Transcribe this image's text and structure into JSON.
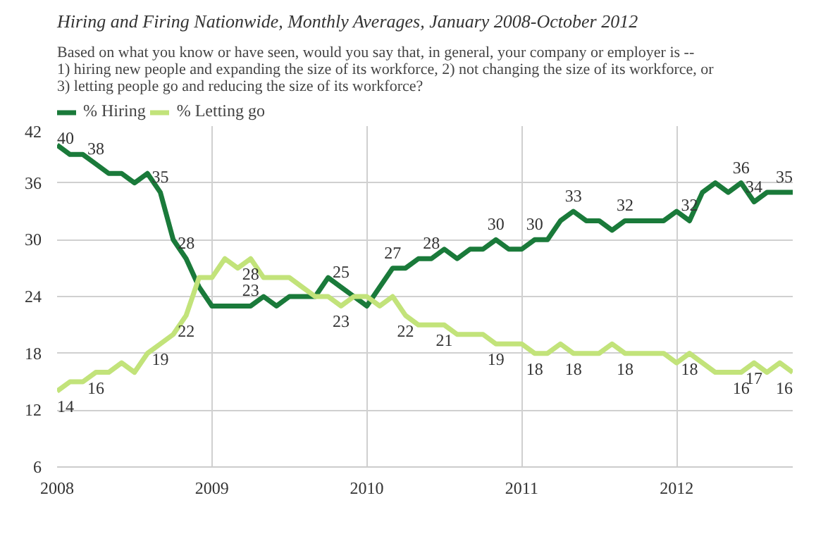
{
  "chart_data": {
    "type": "line",
    "title": "Hiring and Firing Nationwide, Monthly Averages, January 2008-October 2012",
    "subtitle": "Based on what you know or have seen, would you say that, in general, your company or employer is --\n1) hiring new people and expanding the size of its workforce, 2) not changing the size of its workforce, or\n3) letting people go and reducing the size of its workforce?",
    "x": [
      "2008-01",
      "2008-02",
      "2008-03",
      "2008-04",
      "2008-05",
      "2008-06",
      "2008-07",
      "2008-08",
      "2008-09",
      "2008-10",
      "2008-11",
      "2008-12",
      "2009-01",
      "2009-02",
      "2009-03",
      "2009-04",
      "2009-05",
      "2009-06",
      "2009-07",
      "2009-08",
      "2009-09",
      "2009-10",
      "2009-11",
      "2009-12",
      "2010-01",
      "2010-02",
      "2010-03",
      "2010-04",
      "2010-05",
      "2010-06",
      "2010-07",
      "2010-08",
      "2010-09",
      "2010-10",
      "2010-11",
      "2010-12",
      "2011-01",
      "2011-02",
      "2011-03",
      "2011-04",
      "2011-05",
      "2011-06",
      "2011-07",
      "2011-08",
      "2011-09",
      "2011-10",
      "2011-11",
      "2011-12",
      "2012-01",
      "2012-02",
      "2012-03",
      "2012-04",
      "2012-05",
      "2012-06",
      "2012-07",
      "2012-08",
      "2012-09",
      "2012-10"
    ],
    "series": [
      {
        "name": "% Hiring",
        "color": "#1a7a3a",
        "values": [
          40,
          39,
          39,
          38,
          37,
          37,
          36,
          37,
          35,
          30,
          28,
          25,
          23,
          23,
          23,
          23,
          24,
          23,
          24,
          24,
          24,
          26,
          25,
          24,
          23,
          25,
          27,
          27,
          28,
          28,
          29,
          28,
          29,
          29,
          30,
          29,
          29,
          30,
          30,
          32,
          33,
          32,
          32,
          31,
          32,
          32,
          32,
          32,
          33,
          32,
          35,
          36,
          35,
          36,
          34,
          35,
          35,
          35
        ],
        "value_labels": [
          "40",
          null,
          null,
          "38",
          null,
          null,
          null,
          null,
          "35",
          null,
          "28",
          null,
          null,
          null,
          null,
          "23",
          null,
          null,
          null,
          null,
          null,
          null,
          "25",
          null,
          null,
          null,
          "27",
          null,
          null,
          "28",
          null,
          null,
          null,
          null,
          "30",
          null,
          null,
          "30",
          null,
          null,
          "33",
          null,
          null,
          null,
          "32",
          null,
          null,
          null,
          null,
          "32",
          null,
          null,
          null,
          "36",
          "34",
          null,
          null,
          "35"
        ]
      },
      {
        "name": "% Letting go",
        "color": "#c2e37a",
        "values": [
          14,
          15,
          15,
          16,
          16,
          17,
          16,
          18,
          19,
          20,
          22,
          26,
          26,
          28,
          27,
          28,
          26,
          26,
          26,
          25,
          24,
          24,
          23,
          24,
          24,
          23,
          24,
          22,
          21,
          21,
          21,
          20,
          20,
          20,
          19,
          19,
          19,
          18,
          18,
          19,
          18,
          18,
          18,
          19,
          18,
          18,
          18,
          18,
          17,
          18,
          17,
          16,
          16,
          16,
          17,
          16,
          17,
          16
        ],
        "value_labels": [
          "14",
          null,
          null,
          "16",
          null,
          null,
          null,
          null,
          "19",
          null,
          "22",
          null,
          null,
          null,
          null,
          "28",
          null,
          null,
          null,
          null,
          null,
          null,
          "23",
          null,
          null,
          null,
          null,
          "22",
          null,
          null,
          "21",
          null,
          null,
          null,
          "19",
          null,
          null,
          "18",
          null,
          null,
          "18",
          null,
          null,
          null,
          "18",
          null,
          null,
          null,
          null,
          "18",
          null,
          null,
          null,
          "16",
          "17",
          null,
          null,
          "16"
        ]
      }
    ],
    "xlim": [
      "2008-01",
      "2012-10"
    ],
    "xticks": [
      "2008",
      "2009",
      "2010",
      "2011",
      "2012"
    ],
    "ylim": [
      6,
      42
    ],
    "yticks": [
      6,
      12,
      18,
      24,
      30,
      36,
      42
    ],
    "grid": true,
    "legend": "top left",
    "marker": "none",
    "line_style": "solid"
  }
}
